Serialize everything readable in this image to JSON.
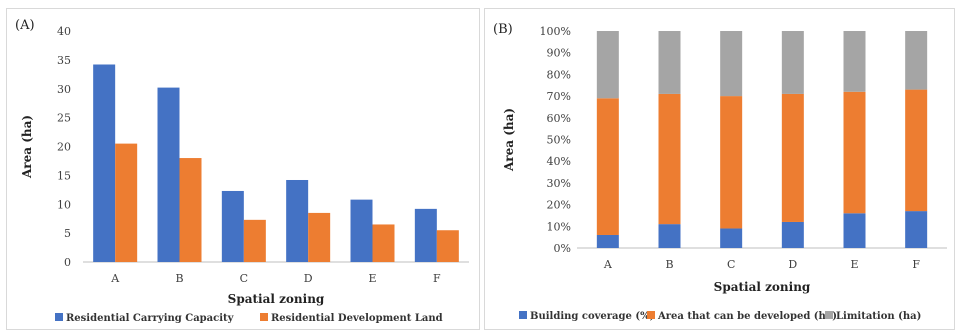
{
  "chart_data": [
    {
      "type": "bar",
      "panel_label": "(A)",
      "categories": [
        "A",
        "B",
        "C",
        "D",
        "E",
        "F"
      ],
      "series": [
        {
          "name": "Residential Carrying Capacity",
          "color": "#4472c4",
          "values": [
            34.2,
            30.2,
            12.3,
            14.2,
            10.8,
            9.2
          ]
        },
        {
          "name": "Residential Development Land",
          "color": "#ed7d31",
          "values": [
            20.5,
            18.0,
            7.3,
            8.5,
            6.5,
            5.5
          ]
        }
      ],
      "xlabel": "Spatial zoning",
      "ylabel": "Area (ha)",
      "ylim": [
        0,
        40
      ],
      "yticks": [
        "0",
        "5",
        "10",
        "15",
        "20",
        "25",
        "30",
        "35",
        "40"
      ],
      "grid": false,
      "legend": "bottom"
    },
    {
      "type": "bar",
      "stacked": "percent",
      "panel_label": "(B)",
      "categories": [
        "A",
        "B",
        "C",
        "D",
        "E",
        "F"
      ],
      "series": [
        {
          "name": "Building coverage (%)",
          "color": "#4472c4",
          "values": [
            6,
            11,
            9,
            12,
            16,
            17
          ]
        },
        {
          "name": "Area that can be developed (ha)",
          "color": "#ed7d31",
          "values": [
            63,
            60,
            61,
            59,
            56,
            56
          ]
        },
        {
          "name": "Limitation (ha)",
          "color": "#a5a5a5",
          "values": [
            31,
            29,
            30,
            29,
            28,
            27
          ]
        }
      ],
      "xlabel": "Spatial zoning",
      "ylabel": "Area (ha)",
      "ylim": [
        0,
        100
      ],
      "yticks": [
        "0%",
        "10%",
        "20%",
        "30%",
        "40%",
        "50%",
        "60%",
        "70%",
        "80%",
        "90%",
        "100%"
      ],
      "grid": false,
      "legend": "bottom"
    }
  ]
}
